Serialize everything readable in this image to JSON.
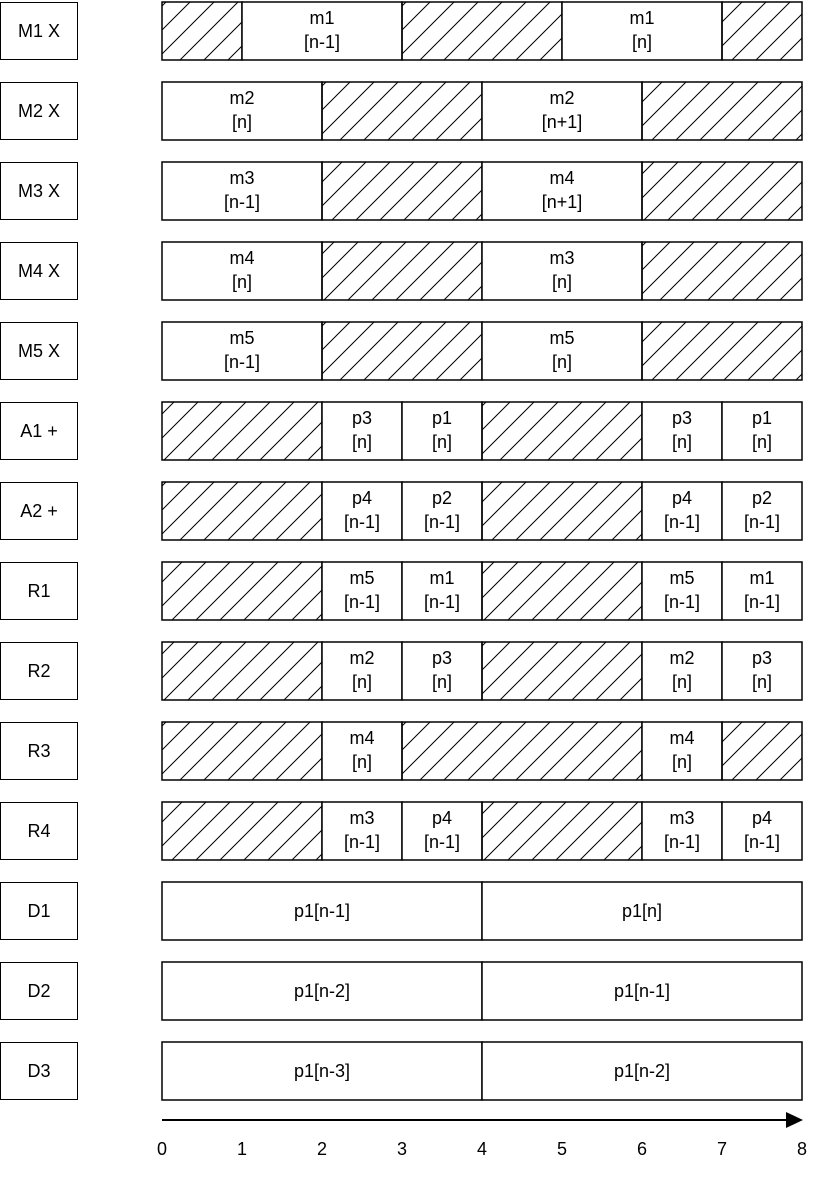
{
  "rows": [
    {
      "label": "M1 X",
      "cells": [
        {
          "start": 0,
          "end": 1,
          "hatched": true
        },
        {
          "start": 1,
          "end": 3,
          "lines": [
            "m1",
            "[n-1]"
          ]
        },
        {
          "start": 3,
          "end": 5,
          "hatched": true
        },
        {
          "start": 5,
          "end": 7,
          "lines": [
            "m1",
            "[n]"
          ]
        },
        {
          "start": 7,
          "end": 8,
          "hatched": true
        }
      ]
    },
    {
      "label": "M2 X",
      "cells": [
        {
          "start": 0,
          "end": 2,
          "lines": [
            "m2",
            "[n]"
          ]
        },
        {
          "start": 2,
          "end": 4,
          "hatched": true
        },
        {
          "start": 4,
          "end": 6,
          "lines": [
            "m2",
            "[n+1]"
          ]
        },
        {
          "start": 6,
          "end": 8,
          "hatched": true
        }
      ]
    },
    {
      "label": "M3 X",
      "cells": [
        {
          "start": 0,
          "end": 2,
          "lines": [
            "m3",
            "[n-1]"
          ]
        },
        {
          "start": 2,
          "end": 4,
          "hatched": true
        },
        {
          "start": 4,
          "end": 6,
          "lines": [
            "m4",
            "[n+1]"
          ]
        },
        {
          "start": 6,
          "end": 8,
          "hatched": true
        }
      ]
    },
    {
      "label": "M4 X",
      "cells": [
        {
          "start": 0,
          "end": 2,
          "lines": [
            "m4",
            "[n]"
          ]
        },
        {
          "start": 2,
          "end": 4,
          "hatched": true
        },
        {
          "start": 4,
          "end": 6,
          "lines": [
            "m3",
            "[n]"
          ]
        },
        {
          "start": 6,
          "end": 8,
          "hatched": true
        }
      ]
    },
    {
      "label": "M5 X",
      "cells": [
        {
          "start": 0,
          "end": 2,
          "lines": [
            "m5",
            "[n-1]"
          ]
        },
        {
          "start": 2,
          "end": 4,
          "hatched": true
        },
        {
          "start": 4,
          "end": 6,
          "lines": [
            "m5",
            "[n]"
          ]
        },
        {
          "start": 6,
          "end": 8,
          "hatched": true
        }
      ]
    },
    {
      "label": "A1 +",
      "cells": [
        {
          "start": 0,
          "end": 2,
          "hatched": true
        },
        {
          "start": 2,
          "end": 3,
          "lines": [
            "p3",
            "[n]"
          ]
        },
        {
          "start": 3,
          "end": 4,
          "lines": [
            "p1",
            "[n]"
          ]
        },
        {
          "start": 4,
          "end": 6,
          "hatched": true
        },
        {
          "start": 6,
          "end": 7,
          "lines": [
            "p3",
            "[n]"
          ]
        },
        {
          "start": 7,
          "end": 8,
          "lines": [
            "p1",
            "[n]"
          ]
        }
      ]
    },
    {
      "label": "A2 +",
      "cells": [
        {
          "start": 0,
          "end": 2,
          "hatched": true
        },
        {
          "start": 2,
          "end": 3,
          "lines": [
            "p4",
            "[n-1]"
          ]
        },
        {
          "start": 3,
          "end": 4,
          "lines": [
            "p2",
            "[n-1]"
          ]
        },
        {
          "start": 4,
          "end": 6,
          "hatched": true
        },
        {
          "start": 6,
          "end": 7,
          "lines": [
            "p4",
            "[n-1]"
          ]
        },
        {
          "start": 7,
          "end": 8,
          "lines": [
            "p2",
            "[n-1]"
          ]
        }
      ]
    },
    {
      "label": "R1",
      "cells": [
        {
          "start": 0,
          "end": 2,
          "hatched": true
        },
        {
          "start": 2,
          "end": 3,
          "lines": [
            "m5",
            "[n-1]"
          ]
        },
        {
          "start": 3,
          "end": 4,
          "lines": [
            "m1",
            "[n-1]"
          ]
        },
        {
          "start": 4,
          "end": 6,
          "hatched": true
        },
        {
          "start": 6,
          "end": 7,
          "lines": [
            "m5",
            "[n-1]"
          ]
        },
        {
          "start": 7,
          "end": 8,
          "lines": [
            "m1",
            "[n-1]"
          ]
        }
      ]
    },
    {
      "label": "R2",
      "cells": [
        {
          "start": 0,
          "end": 2,
          "hatched": true
        },
        {
          "start": 2,
          "end": 3,
          "lines": [
            "m2",
            "[n]"
          ]
        },
        {
          "start": 3,
          "end": 4,
          "lines": [
            "p3",
            "[n]"
          ]
        },
        {
          "start": 4,
          "end": 6,
          "hatched": true
        },
        {
          "start": 6,
          "end": 7,
          "lines": [
            "m2",
            "[n]"
          ]
        },
        {
          "start": 7,
          "end": 8,
          "lines": [
            "p3",
            "[n]"
          ]
        }
      ]
    },
    {
      "label": "R3",
      "cells": [
        {
          "start": 0,
          "end": 2,
          "hatched": true
        },
        {
          "start": 2,
          "end": 3,
          "lines": [
            "m4",
            "[n]"
          ]
        },
        {
          "start": 3,
          "end": 6,
          "hatched": true
        },
        {
          "start": 6,
          "end": 7,
          "lines": [
            "m4",
            "[n]"
          ]
        },
        {
          "start": 7,
          "end": 8,
          "hatched": true
        }
      ]
    },
    {
      "label": "R4",
      "cells": [
        {
          "start": 0,
          "end": 2,
          "hatched": true
        },
        {
          "start": 2,
          "end": 3,
          "lines": [
            "m3",
            "[n-1]"
          ]
        },
        {
          "start": 3,
          "end": 4,
          "lines": [
            "p4",
            "[n-1]"
          ]
        },
        {
          "start": 4,
          "end": 6,
          "hatched": true
        },
        {
          "start": 6,
          "end": 7,
          "lines": [
            "m3",
            "[n-1]"
          ]
        },
        {
          "start": 7,
          "end": 8,
          "lines": [
            "p4",
            "[n-1]"
          ]
        }
      ]
    },
    {
      "label": "D1",
      "cells": [
        {
          "start": 0,
          "end": 4,
          "lines": [
            "p1[n-1]"
          ]
        },
        {
          "start": 4,
          "end": 8,
          "lines": [
            "p1[n]"
          ]
        }
      ]
    },
    {
      "label": "D2",
      "cells": [
        {
          "start": 0,
          "end": 4,
          "lines": [
            "p1[n-2]"
          ]
        },
        {
          "start": 4,
          "end": 8,
          "lines": [
            "p1[n-1]"
          ]
        }
      ]
    },
    {
      "label": "D3",
      "cells": [
        {
          "start": 0,
          "end": 4,
          "lines": [
            "p1[n-3]"
          ]
        },
        {
          "start": 4,
          "end": 8,
          "lines": [
            "p1[n-2]"
          ]
        }
      ]
    }
  ],
  "axis": {
    "ticks": [
      "0",
      "1",
      "2",
      "3",
      "4",
      "5",
      "6",
      "7",
      "8"
    ]
  }
}
